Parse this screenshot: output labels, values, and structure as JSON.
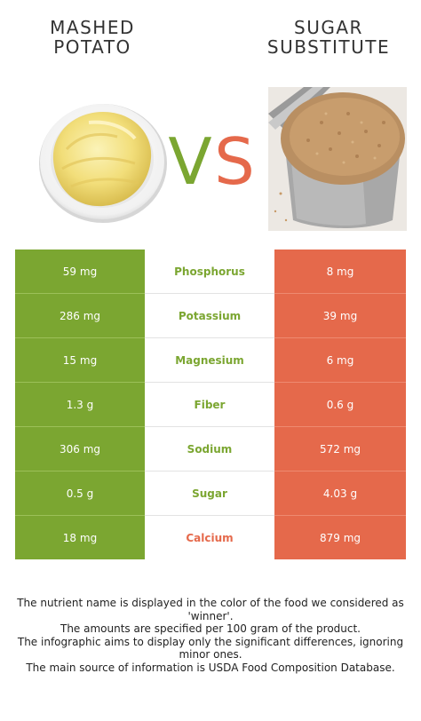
{
  "left_food": {
    "title_line1": "MASHED",
    "title_line2": "POTATO",
    "color": "#7ba631"
  },
  "right_food": {
    "title_line1": "SUGAR",
    "title_line2": "SUBSTITUTE",
    "color": "#e5694b"
  },
  "vs": {
    "v": "V",
    "s": "S"
  },
  "rows": [
    {
      "left": "59 mg",
      "nutrient": "Phosphorus",
      "right": "8 mg",
      "winner": "left"
    },
    {
      "left": "286 mg",
      "nutrient": "Potassium",
      "right": "39 mg",
      "winner": "left"
    },
    {
      "left": "15 mg",
      "nutrient": "Magnesium",
      "right": "6 mg",
      "winner": "left"
    },
    {
      "left": "1.3 g",
      "nutrient": "Fiber",
      "right": "0.6 g",
      "winner": "left"
    },
    {
      "left": "306 mg",
      "nutrient": "Sodium",
      "right": "572 mg",
      "winner": "left"
    },
    {
      "left": "0.5 g",
      "nutrient": "Sugar",
      "right": "4.03 g",
      "winner": "left"
    },
    {
      "left": "18 mg",
      "nutrient": "Calcium",
      "right": "879 mg",
      "winner": "right"
    }
  ],
  "footer": {
    "line1": "The nutrient name is displayed in the color of the food we considered as 'winner'.",
    "line2": "The amounts are specified per 100 gram of the product.",
    "line3": "The infographic aims to display only the significant differences, ignoring minor ones.",
    "line4": "The main source of information is USDA Food Composition Database."
  }
}
